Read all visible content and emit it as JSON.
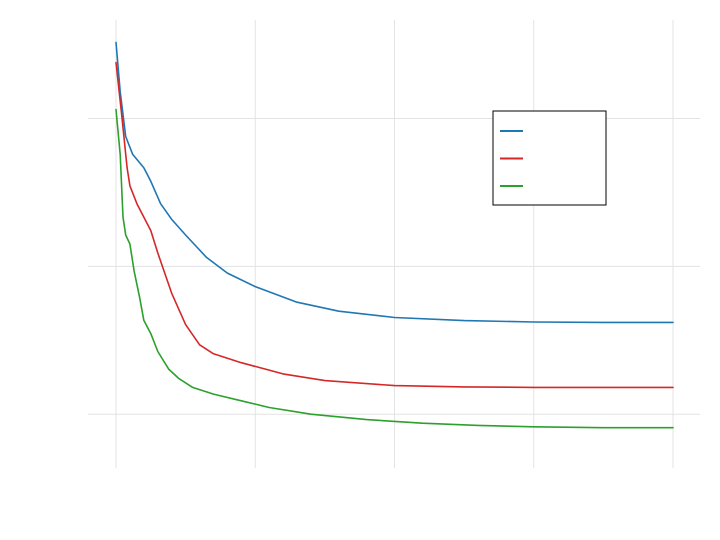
{
  "chart_data": {
    "type": "line",
    "title": "",
    "xlabel": "",
    "ylabel": "",
    "grid": true,
    "legend_position": "top-right",
    "xlim": [
      0,
      4
    ],
    "ylim": [
      0,
      1
    ],
    "x_gridlines": [
      0,
      1,
      2,
      3,
      4
    ],
    "y_gridlines": [
      0.12,
      0.45,
      0.78
    ],
    "series": [
      {
        "name": "",
        "color": "#1f77b4",
        "x": [
          0,
          0.03,
          0.07,
          0.12,
          0.2,
          0.25,
          0.32,
          0.4,
          0.5,
          0.65,
          0.8,
          1.0,
          1.3,
          1.6,
          2.0,
          2.5,
          3.0,
          3.5,
          4.0
        ],
        "y": [
          0.95,
          0.84,
          0.74,
          0.7,
          0.67,
          0.64,
          0.59,
          0.555,
          0.52,
          0.47,
          0.435,
          0.405,
          0.37,
          0.35,
          0.336,
          0.329,
          0.326,
          0.325,
          0.325
        ]
      },
      {
        "name": "",
        "color": "#d62728",
        "x": [
          0,
          0.04,
          0.08,
          0.1,
          0.15,
          0.25,
          0.3,
          0.4,
          0.5,
          0.6,
          0.7,
          0.9,
          1.2,
          1.5,
          2.0,
          2.5,
          3.0,
          3.5,
          4.0
        ],
        "y": [
          0.905,
          0.79,
          0.67,
          0.63,
          0.59,
          0.53,
          0.48,
          0.39,
          0.32,
          0.275,
          0.255,
          0.235,
          0.21,
          0.195,
          0.184,
          0.181,
          0.18,
          0.18,
          0.18
        ]
      },
      {
        "name": "",
        "color": "#2ca02c",
        "x": [
          0,
          0.03,
          0.05,
          0.07,
          0.1,
          0.13,
          0.17,
          0.2,
          0.25,
          0.3,
          0.38,
          0.45,
          0.55,
          0.7,
          0.9,
          1.1,
          1.4,
          1.8,
          2.2,
          2.6,
          3.0,
          3.5,
          4.0
        ],
        "y": [
          0.8,
          0.7,
          0.56,
          0.52,
          0.5,
          0.44,
          0.38,
          0.33,
          0.3,
          0.26,
          0.22,
          0.2,
          0.18,
          0.165,
          0.15,
          0.135,
          0.12,
          0.108,
          0.1,
          0.095,
          0.092,
          0.09,
          0.09
        ]
      }
    ]
  }
}
